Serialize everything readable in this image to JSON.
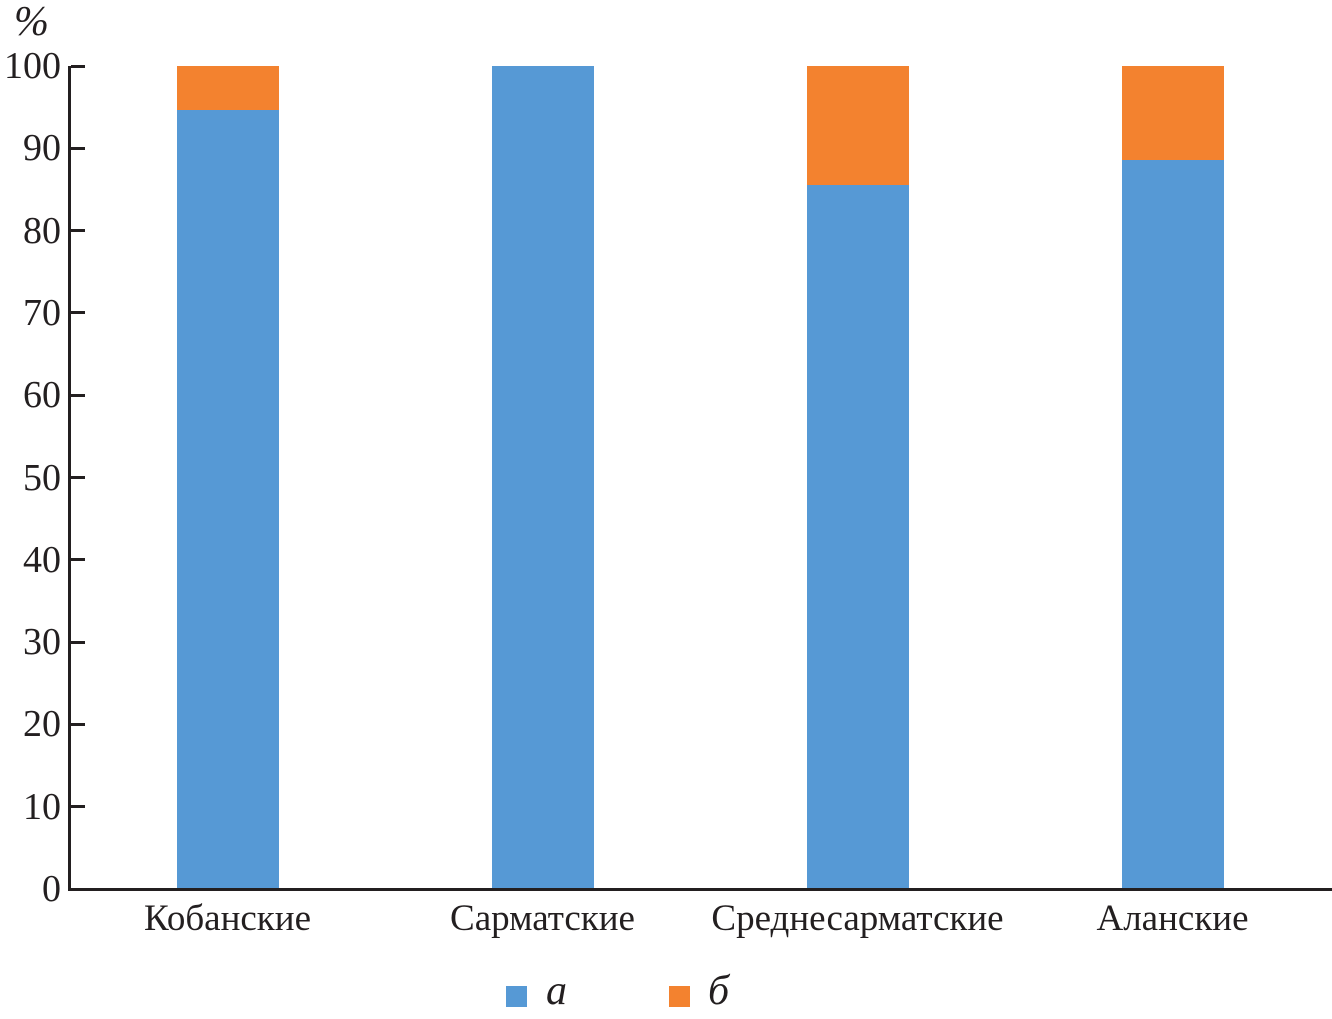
{
  "chart": {
    "y_axis_unit_label": "%"
  },
  "chart_data": {
    "type": "bar",
    "stacked": true,
    "title": "",
    "xlabel": "",
    "ylabel": "%",
    "categories": [
      "Кобанские",
      "Сарматские",
      "Среднесарматские",
      "Аланские"
    ],
    "series": [
      {
        "name": "а",
        "color": "#5699D5",
        "values": [
          94.7,
          100,
          85.6,
          88.6
        ]
      },
      {
        "name": "б",
        "color": "#F3822F",
        "values": [
          5.3,
          0,
          14.4,
          11.4
        ]
      }
    ],
    "ylim": [
      0,
      100
    ],
    "yticks": [
      0,
      10,
      20,
      30,
      40,
      50,
      60,
      70,
      80,
      90,
      100
    ],
    "grid": false,
    "legend_position": "bottom",
    "axis_color": "#231F20"
  }
}
